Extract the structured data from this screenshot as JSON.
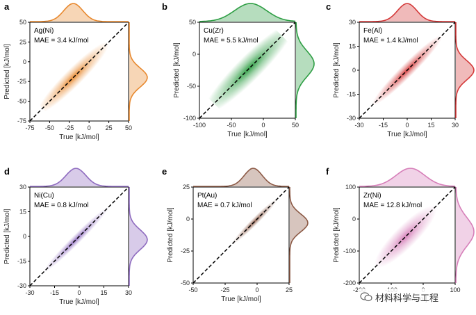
{
  "chart_data": [
    {
      "type": "scatter",
      "panel": "a",
      "annotation": "Ag(Ni)",
      "mae": "MAE = 3.4 kJ/mol",
      "xlabel": "True [kJ/mol]",
      "ylabel": "Predicted [kJ/mol]",
      "xlim": [
        -75,
        50
      ],
      "ylim": [
        -75,
        50
      ],
      "xticks": [
        -75,
        -50,
        -25,
        0,
        25,
        50
      ],
      "yticks": [
        -75,
        -50,
        -25,
        0,
        25,
        50
      ],
      "color": "#e8892f",
      "density": {
        "center_x": -20,
        "center_y": -20,
        "spread_along": 45,
        "spread_across": 8
      },
      "marginal_x": {
        "mean": -20,
        "sd": 12
      },
      "marginal_y": {
        "mean": -20,
        "sd": 12
      }
    },
    {
      "type": "scatter",
      "panel": "b",
      "annotation": "Cu(Zr)",
      "mae": "MAE = 5.5 kJ/mol",
      "xlabel": "True [kJ/mol]",
      "ylabel": "Predicted [kJ/mol]",
      "xlim": [
        -100,
        50
      ],
      "ylim": [
        -100,
        50
      ],
      "xticks": [
        -100,
        -50,
        0,
        50
      ],
      "yticks": [
        -100,
        -50,
        0,
        50
      ],
      "color": "#2e9e44",
      "density": {
        "center_x": -22,
        "center_y": -22,
        "spread_along": 70,
        "spread_across": 14
      },
      "marginal_x": {
        "mean": -20,
        "sd": 25
      },
      "marginal_y": {
        "mean": -15,
        "sd": 20
      }
    },
    {
      "type": "scatter",
      "panel": "c",
      "annotation": "Fe(Al)",
      "mae": "MAE = 1.4 kJ/mol",
      "xlabel": "True [kJ/mol]",
      "ylabel": "Predicted [kJ/mol]",
      "xlim": [
        -30,
        30
      ],
      "ylim": [
        -30,
        30
      ],
      "xticks": [
        -30,
        -15,
        0,
        15,
        30
      ],
      "yticks": [
        -30,
        -15,
        0,
        15,
        30
      ],
      "color": "#d43a3a",
      "density": {
        "center_x": 0,
        "center_y": 0,
        "spread_along": 22,
        "spread_across": 3
      },
      "marginal_x": {
        "mean": 0,
        "sd": 6
      },
      "marginal_y": {
        "mean": 0,
        "sd": 6
      }
    },
    {
      "type": "scatter",
      "panel": "d",
      "annotation": "Ni(Cu)",
      "mae": "MAE = 0.8 kJ/mol",
      "xlabel": "True [kJ/mol]",
      "ylabel": "Predicted [kJ/mol]",
      "xlim": [
        -30,
        30
      ],
      "ylim": [
        -30,
        30
      ],
      "xticks": [
        -30,
        -15,
        0,
        15,
        30
      ],
      "yticks": [
        -30,
        -15,
        0,
        15,
        30
      ],
      "color": "#8e6bbf",
      "density": {
        "center_x": -2,
        "center_y": -2,
        "spread_along": 20,
        "spread_across": 2
      },
      "marginal_x": {
        "mean": -2,
        "sd": 6
      },
      "marginal_y": {
        "mean": -2,
        "sd": 6
      }
    },
    {
      "type": "scatter",
      "panel": "e",
      "annotation": "Pt(Au)",
      "mae": "MAE = 0.7 kJ/mol",
      "xlabel": "True [kJ/mol]",
      "ylabel": "Predicted [kJ/mol]",
      "xlim": [
        -50,
        25
      ],
      "ylim": [
        -50,
        25
      ],
      "xticks": [
        -50,
        -25,
        0,
        25
      ],
      "yticks": [
        -50,
        -25,
        0,
        25
      ],
      "color": "#8c5a46",
      "density": {
        "center_x": -2,
        "center_y": -2,
        "spread_along": 18,
        "spread_across": 2
      },
      "marginal_x": {
        "mean": -3,
        "sd": 7
      },
      "marginal_y": {
        "mean": -3,
        "sd": 7
      }
    },
    {
      "type": "scatter",
      "panel": "f",
      "annotation": "Zr(Ni)",
      "mae": "MAE = 12.8 kJ/mol",
      "xlabel": "True [kJ/mol]",
      "ylabel": "Predicted [kJ/mol]",
      "xlim": [
        -200,
        100
      ],
      "ylim": [
        -200,
        100
      ],
      "xticks": [
        -200,
        -100,
        0,
        100
      ],
      "yticks": [
        -200,
        -100,
        0,
        100
      ],
      "color": "#d67fb9",
      "density": {
        "center_x": -55,
        "center_y": -55,
        "spread_along": 95,
        "spread_across": 25
      },
      "marginal_x": {
        "mean": -40,
        "sd": 45
      },
      "marginal_y": {
        "mean": -40,
        "sd": 45
      }
    }
  ],
  "watermark": "材料科学与工程"
}
